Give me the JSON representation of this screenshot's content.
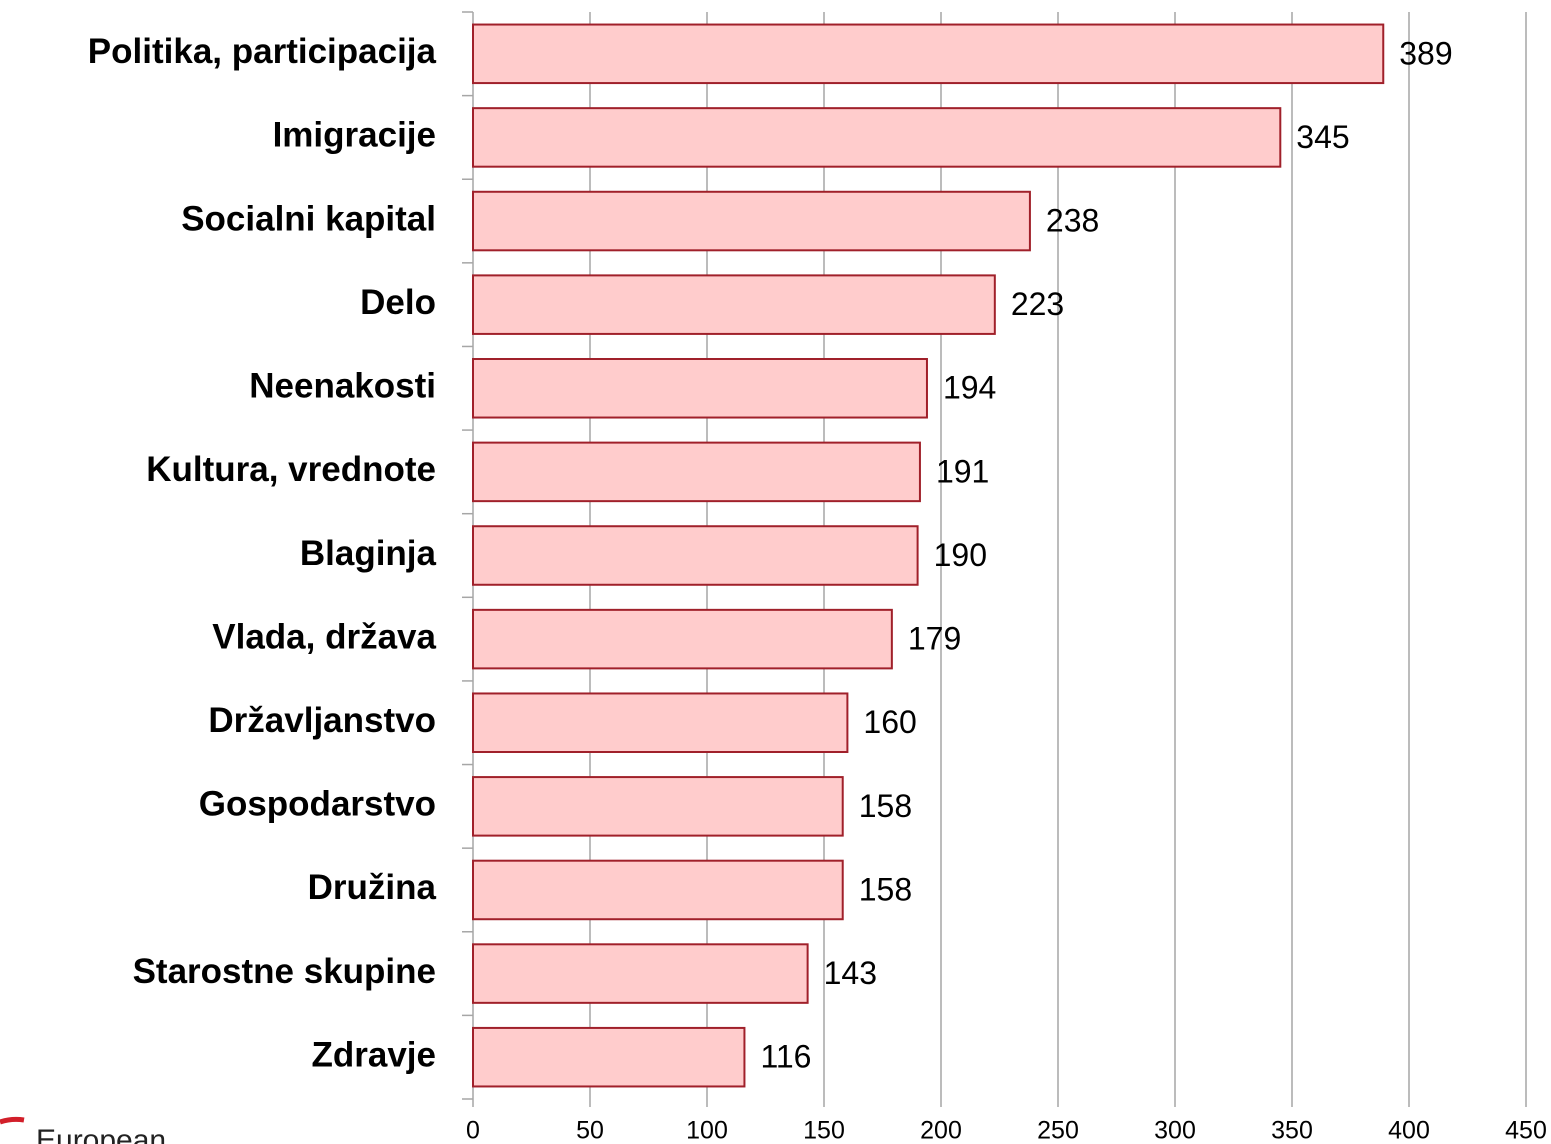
{
  "chart_data": {
    "type": "bar",
    "orientation": "horizontal",
    "categories": [
      "Politika, participacija",
      "Imigracije",
      "Socialni kapital",
      "Delo",
      "Neenakosti",
      "Kultura, vrednote",
      "Blaginja",
      "Vlada, država",
      "Državljanstvo",
      "Gospodarstvo",
      "Družina",
      "Starostne skupine",
      "Zdravje"
    ],
    "values": [
      389,
      345,
      238,
      223,
      194,
      191,
      190,
      179,
      160,
      158,
      158,
      143,
      116
    ],
    "color": "#ffcccc",
    "edge_color": "#a0202a",
    "xlim": [
      0,
      450
    ],
    "xticks": [
      0,
      50,
      100,
      150,
      200,
      250,
      300,
      350,
      400,
      450
    ],
    "grid": true
  },
  "logo": "European"
}
